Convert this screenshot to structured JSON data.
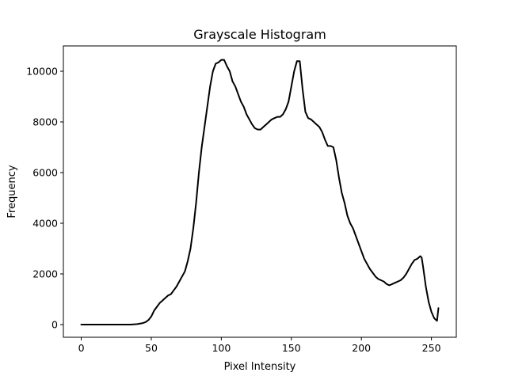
{
  "chart_data": {
    "type": "line",
    "title": "Grayscale Histogram",
    "xlabel": "Pixel Intensity",
    "ylabel": "Frequency",
    "xlim": [
      -12.75,
      267.75
    ],
    "ylim": [
      -500,
      11000
    ],
    "xticks": [
      0,
      50,
      100,
      150,
      200,
      250
    ],
    "yticks": [
      0,
      2000,
      4000,
      6000,
      8000,
      10000
    ],
    "grid": false,
    "line_color": "#000000",
    "series": [
      {
        "x": [
          0,
          5,
          10,
          15,
          20,
          25,
          30,
          35,
          38,
          40,
          42,
          44,
          46,
          48,
          50,
          52,
          54,
          56,
          58,
          60,
          62,
          64,
          66,
          68,
          70,
          72,
          74,
          76,
          78,
          80,
          82,
          84,
          86,
          88,
          90,
          92,
          94,
          96,
          98,
          100,
          102,
          104,
          106,
          108,
          110,
          112,
          114,
          116,
          118,
          120,
          122,
          124,
          126,
          128,
          130,
          132,
          134,
          136,
          138,
          140,
          142,
          144,
          146,
          148,
          150,
          152,
          154,
          156,
          158,
          160,
          162,
          164,
          166,
          168,
          170,
          172,
          174,
          176,
          178,
          180,
          182,
          184,
          186,
          188,
          190,
          192,
          194,
          196,
          198,
          200,
          202,
          204,
          206,
          208,
          210,
          212,
          214,
          216,
          218,
          220,
          222,
          224,
          226,
          228,
          230,
          232,
          234,
          236,
          238,
          240,
          242,
          243,
          244,
          246,
          248,
          250,
          252,
          254,
          255
        ],
        "y": [
          0,
          0,
          0,
          0,
          0,
          0,
          0,
          0,
          10,
          20,
          40,
          60,
          100,
          180,
          320,
          550,
          700,
          850,
          950,
          1050,
          1150,
          1200,
          1350,
          1500,
          1700,
          1900,
          2100,
          2500,
          3000,
          3800,
          4800,
          6000,
          7000,
          7800,
          8600,
          9400,
          10000,
          10300,
          10350,
          10450,
          10450,
          10200,
          10000,
          9600,
          9400,
          9100,
          8800,
          8600,
          8300,
          8100,
          7900,
          7750,
          7700,
          7700,
          7800,
          7900,
          8000,
          8100,
          8150,
          8200,
          8200,
          8300,
          8500,
          8800,
          9400,
          10000,
          10400,
          10400,
          9300,
          8400,
          8150,
          8100,
          8000,
          7900,
          7800,
          7600,
          7300,
          7050,
          7050,
          7000,
          6500,
          5800,
          5200,
          4800,
          4300,
          4000,
          3800,
          3500,
          3200,
          2900,
          2600,
          2400,
          2200,
          2050,
          1900,
          1800,
          1750,
          1700,
          1600,
          1550,
          1600,
          1650,
          1700,
          1750,
          1850,
          2000,
          2200,
          2400,
          2550,
          2600,
          2700,
          2650,
          2300,
          1500,
          900,
          500,
          250,
          150,
          650
        ]
      }
    ]
  }
}
